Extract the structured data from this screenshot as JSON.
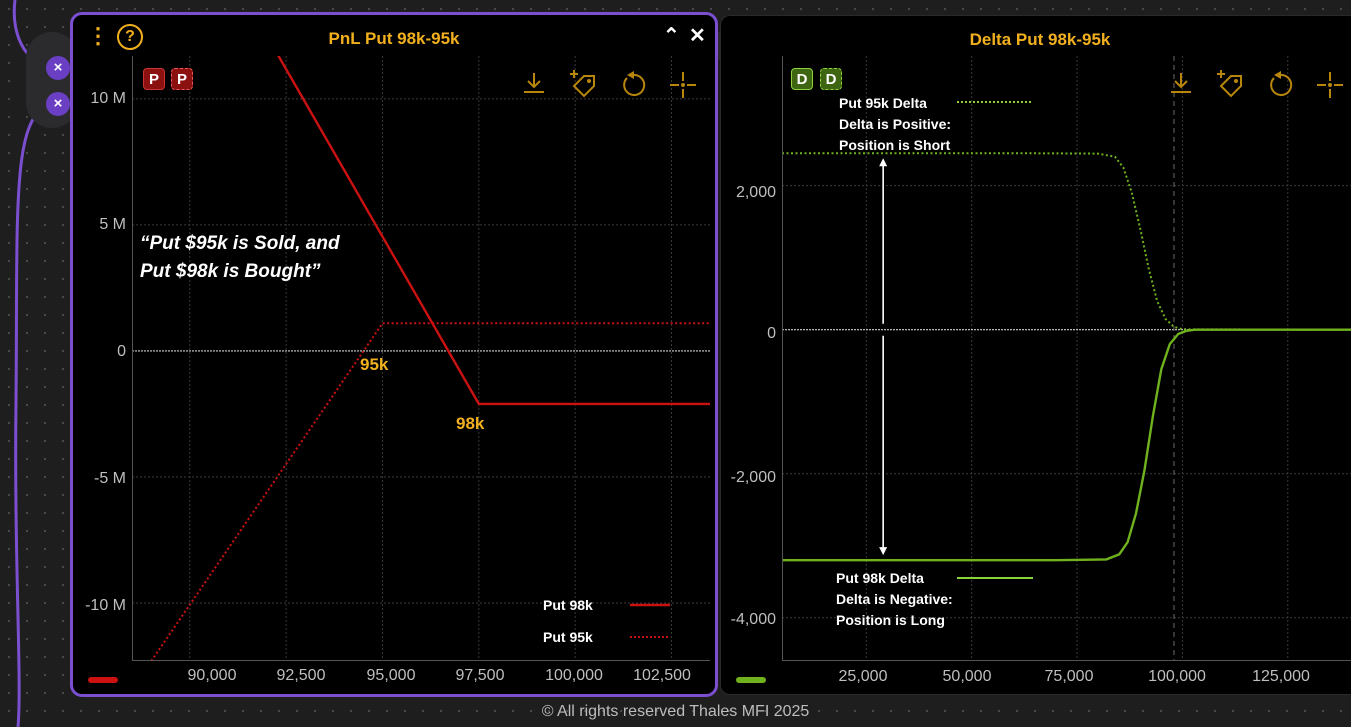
{
  "footer": "© All rights reserved Thales MFI 2025",
  "left_panel": {
    "title": "PnL Put 98k-95k",
    "menu_icon": "vertical-dots-icon",
    "help_icon": "help-circle-icon",
    "collapse_icon": "chevron-up-icon",
    "close_icon": "close-icon",
    "badges": [
      "P",
      "P"
    ],
    "toolbar_icons": [
      "download-icon",
      "tag-add-icon",
      "reset-icon",
      "crosshair-icon"
    ],
    "annotation_line1": "“Put $95k is Sold, and",
    "annotation_line2": "Put $98k is Bought”",
    "callout_95k": "95k",
    "callout_98k": "98k"
  },
  "right_panel": {
    "title": "Delta Put 98k-95k",
    "badges": [
      "D",
      "D"
    ],
    "toolbar_icons": [
      "download-icon",
      "tag-add-icon",
      "reset-icon",
      "crosshair-icon"
    ],
    "note_short": [
      "Delta is Positive:",
      "Position is Short"
    ],
    "note_long": [
      "Delta is Negative:",
      "Position is Long"
    ]
  },
  "colors": {
    "accent": "#f2b01e",
    "frame": "#7b4fd0",
    "pnl_red": "#cc1111",
    "delta_green": "#6fb21e"
  },
  "chart_data": [
    {
      "type": "line",
      "title": "PnL Put 98k-95k",
      "x_tick_labels": [
        "90,000",
        "92,500",
        "95,000",
        "97,500",
        "100,000",
        "102,500"
      ],
      "y_tick_labels": [
        "10 M",
        "5 M",
        "0",
        "-5 M",
        "-10 M"
      ],
      "xlim": [
        88500,
        103500
      ],
      "ylim": [
        -12300000,
        11700000
      ],
      "grid": true,
      "legend_position": "bottom-right",
      "series": [
        {
          "name": "Put 98k",
          "style": "solid",
          "color": "#cc1111",
          "x": [
            92000,
            97500,
            103500
          ],
          "y": [
            12500000,
            -2100000,
            -2100000
          ]
        },
        {
          "name": "Put 95k",
          "style": "dotted",
          "color": "#cc1111",
          "x": [
            89000,
            95000,
            103500
          ],
          "y": [
            -12300000,
            1100000,
            1100000
          ]
        }
      ]
    },
    {
      "type": "line",
      "title": "Delta Put 98k-95k",
      "x_tick_labels": [
        "25,000",
        "50,000",
        "75,000",
        "100,000",
        "125,000"
      ],
      "y_tick_labels": [
        "2,000",
        "0",
        "-2,000",
        "-4,000"
      ],
      "xlim": [
        5000,
        140000
      ],
      "ylim": [
        -4600000,
        3800000
      ],
      "y_display_divisor": 1000,
      "grid": true,
      "series": [
        {
          "name": "Put 95k Delta",
          "style": "dotted",
          "color": "#6fb21e",
          "x": [
            5000,
            60000,
            80000,
            84000,
            86000,
            88000,
            90000,
            92000,
            94000,
            96000,
            98000,
            100000,
            140000
          ],
          "y": [
            2450000,
            2450000,
            2445000,
            2400000,
            2250000,
            1900000,
            1400000,
            850000,
            400000,
            150000,
            40000,
            5000,
            0
          ]
        },
        {
          "name": "Put 98k Delta",
          "style": "solid",
          "color": "#6fb21e",
          "x": [
            5000,
            70000,
            82000,
            85000,
            87000,
            89000,
            91000,
            93000,
            95000,
            97000,
            99000,
            101000,
            103000,
            140000
          ],
          "y": [
            -3200000,
            -3200000,
            -3190000,
            -3120000,
            -2950000,
            -2550000,
            -1950000,
            -1200000,
            -550000,
            -200000,
            -60000,
            -15000,
            0,
            0
          ]
        }
      ]
    }
  ]
}
